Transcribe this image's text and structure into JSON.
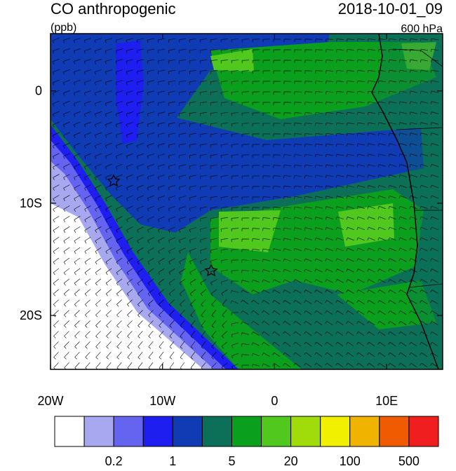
{
  "header": {
    "title": "CO anthropogenic",
    "units": "(ppb)",
    "date": "2018-10-01_09",
    "level": "600 hPa"
  },
  "map": {
    "xlim": [
      -20,
      15
    ],
    "ylim": [
      -24.8,
      5.1
    ],
    "xticks": [
      {
        "value": -20,
        "label": "20W"
      },
      {
        "value": -10,
        "label": "10W"
      },
      0,
      {
        "value": 10,
        "label": "10E"
      }
    ],
    "yticks": [
      0,
      {
        "value": -10,
        "label": "10S"
      },
      {
        "value": -20,
        "label": "20S"
      }
    ]
  },
  "colorbar": {
    "colors": [
      "#ffffff",
      "#a8a8f0",
      "#6464f0",
      "#1e1ef0",
      "#0f3cb4",
      "#0c7058",
      "#0aa01e",
      "#50c81e",
      "#a0dc0a",
      "#f0f000",
      "#f0b400",
      "#f05a00",
      "#f01e1e"
    ],
    "labels": [
      0.2,
      1,
      5,
      20,
      100,
      500
    ]
  }
}
